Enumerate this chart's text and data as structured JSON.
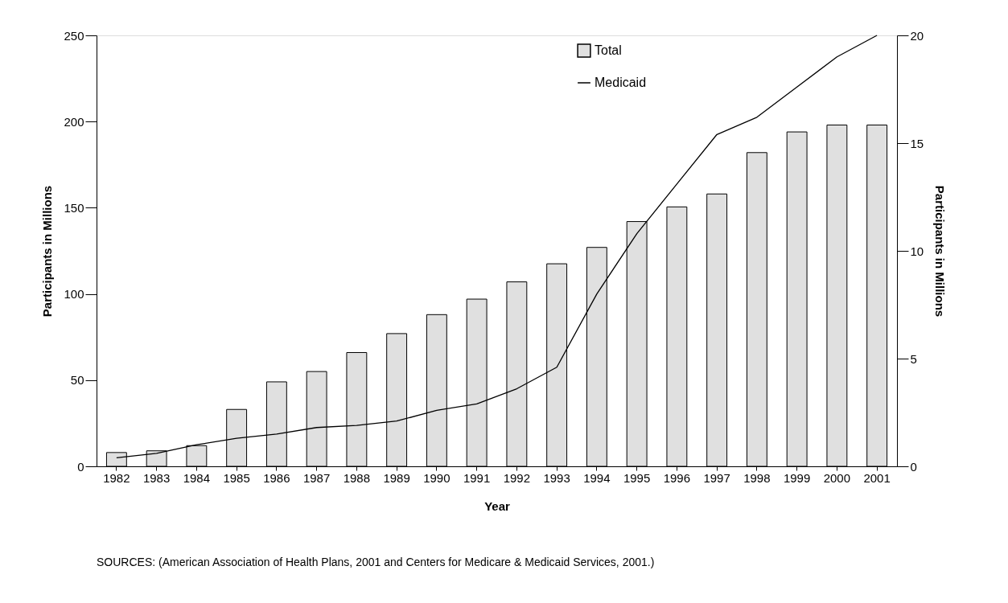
{
  "chart_data": {
    "type": "bar",
    "xlabel": "Year",
    "ylabel": "Participants in Millions",
    "y2label": "Participants in Millions",
    "categories": [
      "1982",
      "1983",
      "1984",
      "1985",
      "1986",
      "1987",
      "1988",
      "1989",
      "1990",
      "1991",
      "1992",
      "1993",
      "1994",
      "1995",
      "1996",
      "1997",
      "1998",
      "1999",
      "2000",
      "2001"
    ],
    "series": [
      {
        "name": "Total",
        "color": "#e0e0e0",
        "values": [
          8,
          9,
          12,
          33,
          49,
          55,
          66,
          77,
          88,
          97,
          107,
          117.5,
          127,
          142,
          150.5,
          158,
          182,
          194,
          198,
          198
        ]
      },
      {
        "name": "Medicaid",
        "type": "line",
        "axis": "y2",
        "color": "#000000",
        "values": [
          0.4,
          0.6,
          1.0,
          1.3,
          1.5,
          1.8,
          1.9,
          2.1,
          2.6,
          2.9,
          3.6,
          4.6,
          8.0,
          10.8,
          13.1,
          15.4,
          16.2,
          17.6,
          19.0,
          20.0
        ]
      }
    ],
    "ylim": [
      0,
      250
    ],
    "yticks": [
      0,
      50,
      100,
      150,
      200,
      250
    ],
    "y2lim": [
      0,
      20
    ],
    "y2ticks": [
      0,
      5,
      10,
      15,
      20
    ],
    "grid": false,
    "legend": "top",
    "marker": "none",
    "line_style": "solid",
    "annotations": [
      "SOURCES: (American Association of Health Plans, 2001 and Centers for Medicare & Medicaid Services, 2001.)"
    ]
  }
}
